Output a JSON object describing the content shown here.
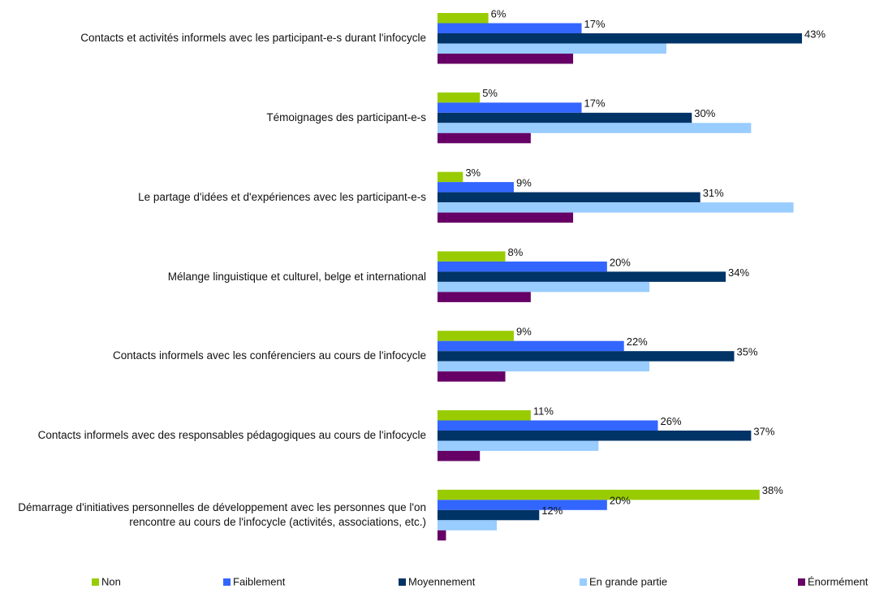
{
  "chart_data": {
    "type": "hbar",
    "categories": [
      "Contacts et activités informels avec les participant-e-s durant l'infocycle",
      "Témoignages des participant-e-s",
      "Le partage d'idées et d'expériences avec les participant-e-s",
      "Mélange linguistique et culturel, belge et international",
      "Contacts informels avec les conférenciers au cours de l'infocycle",
      "Contacts informels avec des responsables pédagogiques au cours de l'infocycle",
      "Démarrage d'initiatives personnelles de développement avec les personnes que l'on rencontre au cours de l'infocycle (activités, associations, etc.)"
    ],
    "series": [
      {
        "name": "Non",
        "color": "#99cc00",
        "values": [
          6,
          5,
          3,
          8,
          9,
          11,
          38
        ],
        "value_labels": [
          "6%",
          "5%",
          "3%",
          "8%",
          "9%",
          "11%",
          "38%"
        ]
      },
      {
        "name": "Faiblement",
        "color": "#3366ff",
        "values": [
          17,
          17,
          9,
          20,
          22,
          26,
          20
        ],
        "value_labels": [
          "17%",
          "17%",
          "9%",
          "20%",
          "22%",
          "26%",
          "20%"
        ]
      },
      {
        "name": "Moyennement",
        "color": "#003366",
        "values": [
          43,
          30,
          31,
          34,
          35,
          37,
          12
        ],
        "value_labels": [
          "43%",
          "30%",
          "31%",
          "34%",
          "35%",
          "37%",
          "12%"
        ]
      },
      {
        "name": "En grande partie",
        "color": "#99ccff",
        "values": [
          27,
          37,
          42,
          25,
          25,
          19,
          7
        ]
      },
      {
        "name": "Énormément",
        "color": "#660066",
        "values": [
          16,
          11,
          16,
          11,
          8,
          5,
          1
        ]
      }
    ],
    "xlim": [
      0,
      52
    ],
    "legend": "bottom"
  }
}
